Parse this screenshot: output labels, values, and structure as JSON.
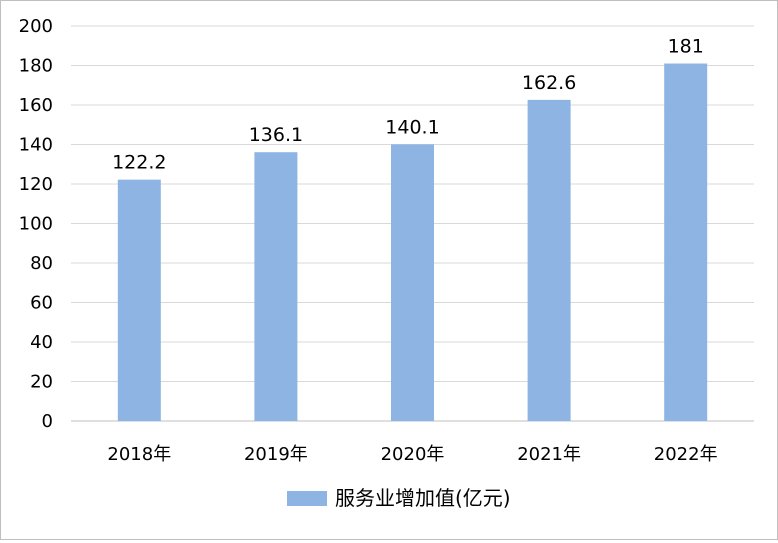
{
  "chart_data": {
    "type": "bar",
    "categories": [
      "2018年",
      "2019年",
      "2020年",
      "2021年",
      "2022年"
    ],
    "series": [
      {
        "name": "服务业增加值(亿元)",
        "values": [
          122.2,
          136.1,
          140.1,
          162.6,
          181
        ]
      }
    ],
    "data_labels": [
      "122.2",
      "136.1",
      "140.1",
      "162.6",
      "181"
    ],
    "y_ticks": [
      0,
      20,
      40,
      60,
      80,
      100,
      120,
      140,
      160,
      180,
      200
    ],
    "ylim": [
      0,
      200
    ],
    "grid": true,
    "legend_position": "bottom",
    "colors": {
      "bar": "#8eb4e3",
      "grid": "#d9d9d9",
      "axis": "#bfbfbf"
    }
  }
}
